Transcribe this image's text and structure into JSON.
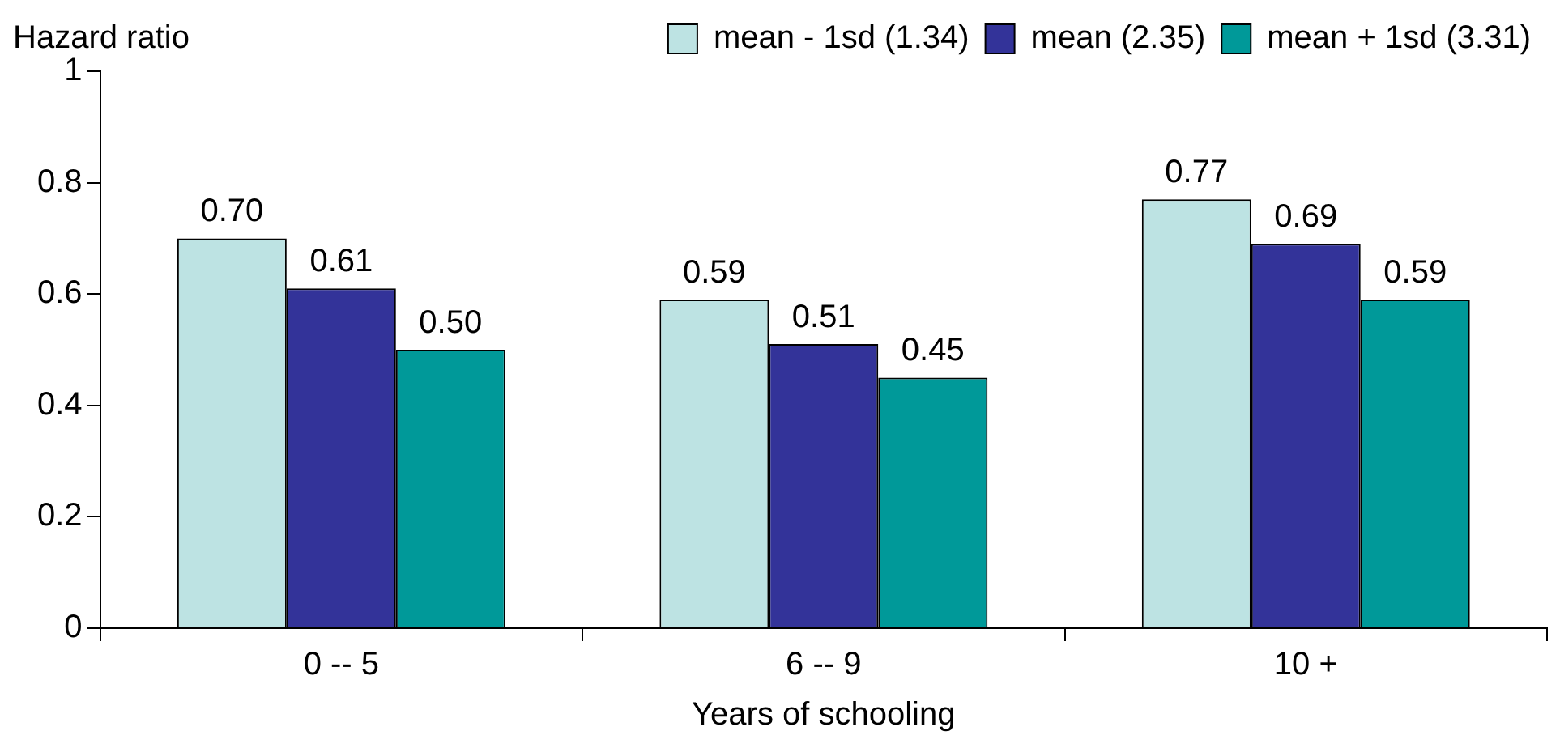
{
  "chart_data": {
    "type": "bar",
    "xlabel": "Years of schooling",
    "ylabel": "Hazard ratio",
    "categories": [
      "0 -- 5",
      "6 -- 9",
      "10 +"
    ],
    "series": [
      {
        "name": "mean - 1sd (1.34)",
        "color": "#bde3e3",
        "values": [
          0.7,
          0.59,
          0.77
        ],
        "value_labels": [
          "0.70",
          "0.59",
          "0.77"
        ]
      },
      {
        "name": "mean (2.35)",
        "color": "#333399",
        "values": [
          0.61,
          0.51,
          0.69
        ],
        "value_labels": [
          "0.61",
          "0.51",
          "0.69"
        ]
      },
      {
        "name": "mean + 1sd (3.31)",
        "color": "#009999",
        "values": [
          0.5,
          0.45,
          0.59
        ],
        "value_labels": [
          "0.50",
          "0.45",
          "0.59"
        ]
      }
    ],
    "ylim": [
      0,
      1
    ],
    "yticks": [
      0,
      0.2,
      0.4,
      0.6,
      0.8,
      1
    ],
    "grid": false,
    "legend": "top"
  }
}
